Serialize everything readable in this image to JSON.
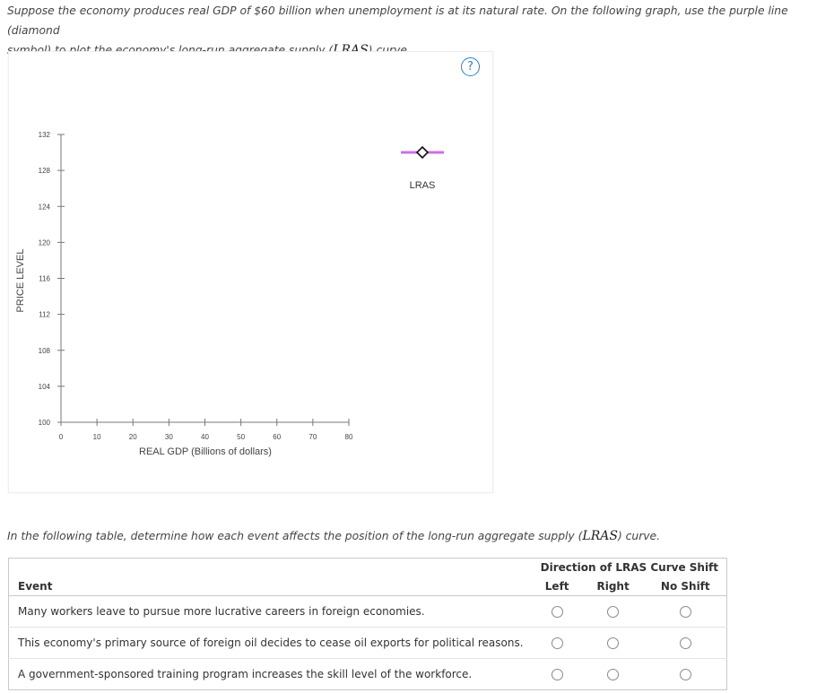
{
  "question": {
    "line1": "Suppose the economy produces real GDP of $60 billion when unemployment is at its natural rate. On the following graph, use the purple line (diamond",
    "line2_prefix": "symbol) to plot the economy's long-run aggregate supply (",
    "line2_math": "LRAS",
    "line2_suffix": ") curve."
  },
  "help_symbol": "?",
  "chart_data": {
    "type": "line",
    "ylabel": "PRICE LEVEL",
    "xlabel": "REAL GDP (Billions of dollars)",
    "x_ticks": [
      "0",
      "10",
      "20",
      "30",
      "40",
      "50",
      "60",
      "70",
      "80"
    ],
    "y_ticks": [
      "100",
      "104",
      "108",
      "112",
      "116",
      "120",
      "124",
      "128",
      "132"
    ],
    "xlim": [
      0,
      80
    ],
    "ylim": [
      100,
      132
    ],
    "series": [],
    "palette_tool": {
      "label": "LRAS",
      "color": "#cc6fe8",
      "marker": "diamond"
    }
  },
  "question2": {
    "prefix": "In the following table, determine how each event affects the position of the long-run aggregate supply (",
    "math": "LRAS",
    "suffix": ") curve."
  },
  "table": {
    "group_header": "Direction of LRAS Curve Shift",
    "event_header": "Event",
    "columns": [
      "Left",
      "Right",
      "No Shift"
    ],
    "rows": [
      "Many workers leave to pursue more lucrative careers in foreign economies.",
      "This economy's primary source of foreign oil decides to cease oil exports for political reasons.",
      "A government-sponsored training program increases the skill level of the workforce."
    ]
  }
}
